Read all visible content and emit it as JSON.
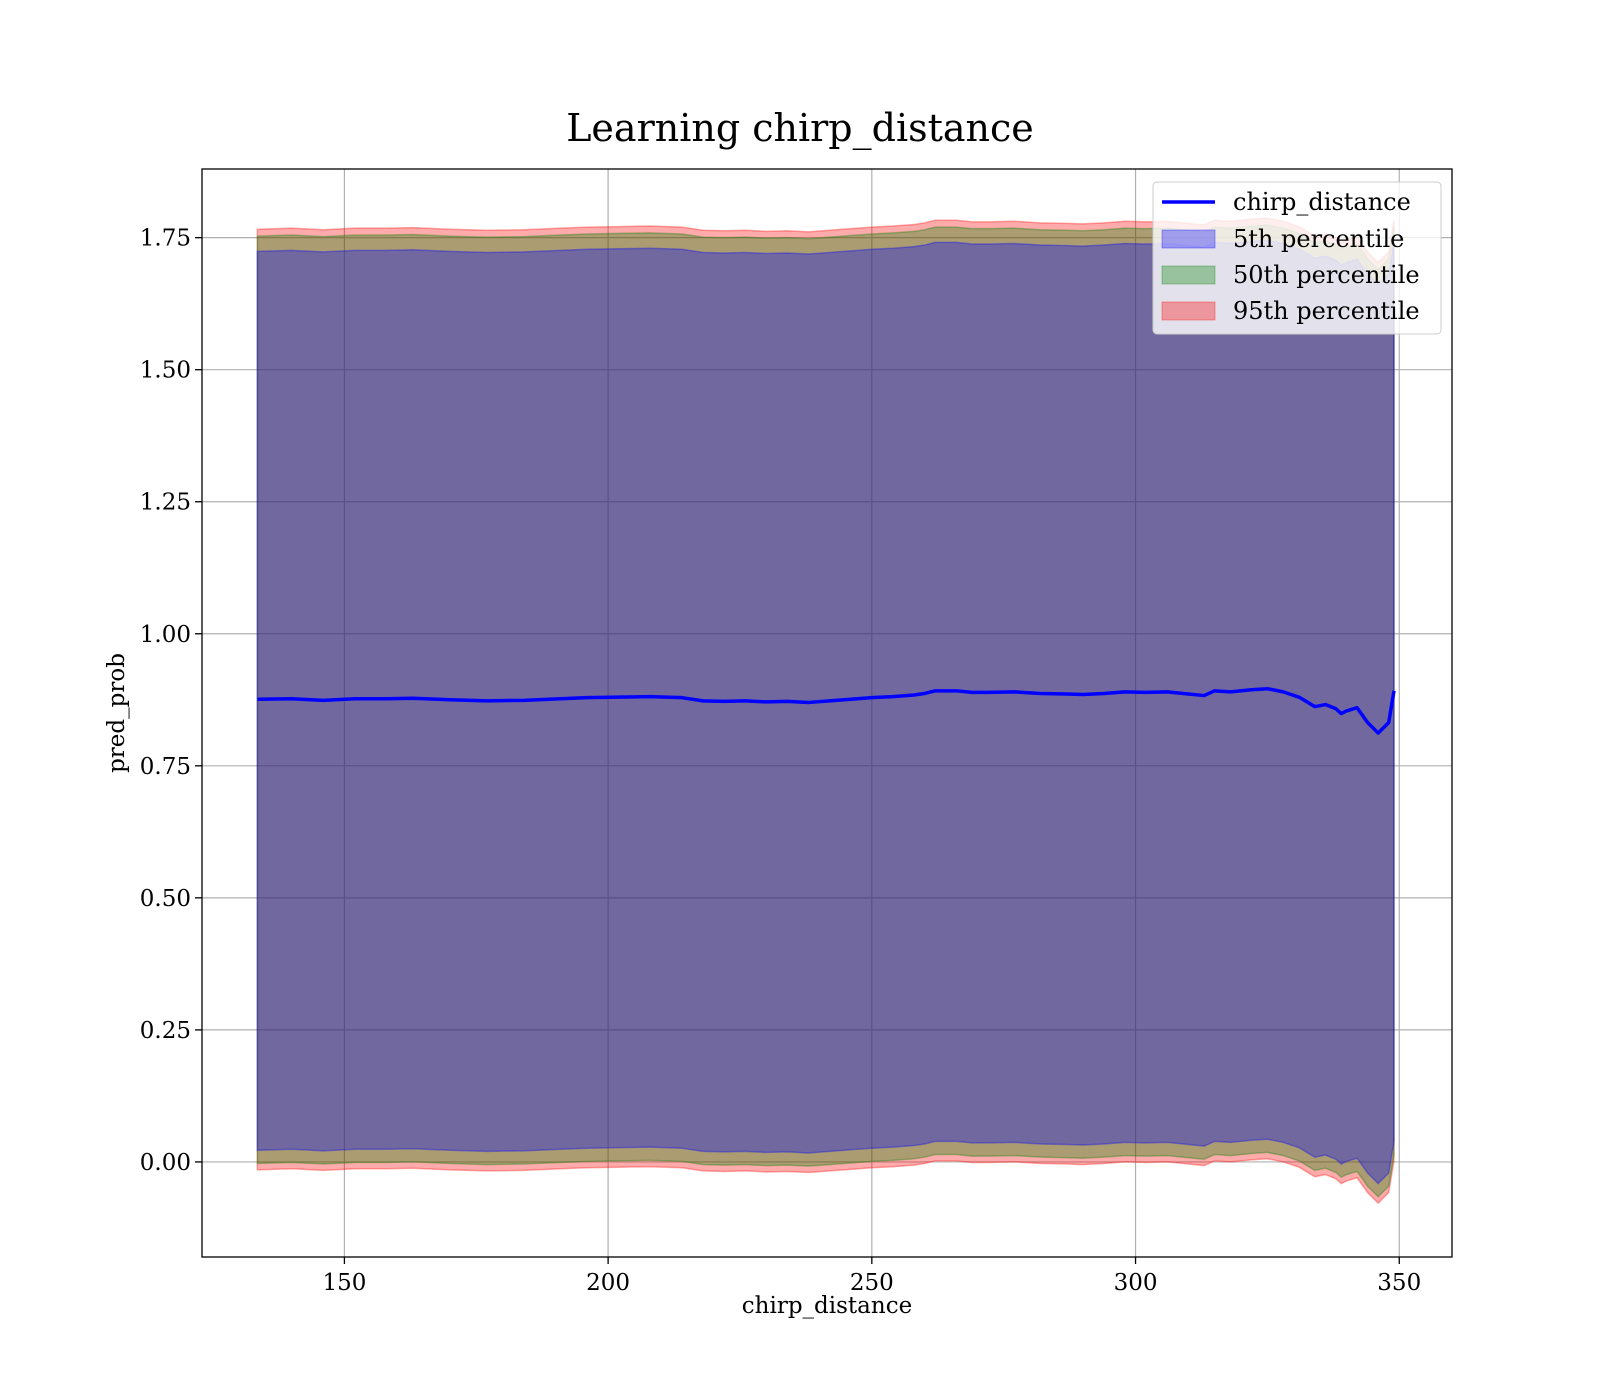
{
  "chart_data": {
    "type": "area",
    "title": "Learning chirp_distance",
    "xlabel": "chirp_distance",
    "ylabel": "pred_prob",
    "xlim": [
      123,
      360
    ],
    "ylim": [
      -0.18,
      1.88
    ],
    "xticks": [
      150,
      200,
      250,
      300,
      350
    ],
    "yticks": [
      0.0,
      0.25,
      0.5,
      0.75,
      1.0,
      1.25,
      1.5,
      1.75
    ],
    "ytick_labels": [
      "0.00",
      "0.25",
      "0.50",
      "0.75",
      "1.00",
      "1.25",
      "1.50",
      "1.75"
    ],
    "xtick_labels": [
      "150",
      "200",
      "250",
      "300",
      "350"
    ],
    "grid": true,
    "legend_position": "top-right",
    "colors": {
      "line": "#0000ff",
      "p5": "#0000ff",
      "p50": "#008000",
      "p95": "#ff0000"
    },
    "series": [
      {
        "name": "chirp_distance",
        "kind": "line",
        "x": [
          133.5,
          140,
          146,
          152,
          158,
          163,
          170,
          177,
          184,
          191,
          196,
          202,
          208,
          214,
          218,
          222,
          226,
          230,
          234,
          238,
          242,
          246,
          250,
          254,
          258,
          260,
          262,
          266,
          269,
          272,
          277,
          282,
          287,
          290,
          294,
          298,
          302,
          306,
          310,
          313,
          315,
          318,
          322,
          325,
          328,
          331,
          334,
          336,
          338,
          339,
          340,
          342,
          344,
          346,
          348,
          349
        ],
        "y": [
          0.876,
          0.877,
          0.874,
          0.877,
          0.877,
          0.878,
          0.875,
          0.873,
          0.874,
          0.877,
          0.879,
          0.88,
          0.881,
          0.879,
          0.873,
          0.872,
          0.873,
          0.871,
          0.872,
          0.87,
          0.873,
          0.876,
          0.879,
          0.881,
          0.884,
          0.887,
          0.892,
          0.892,
          0.889,
          0.889,
          0.89,
          0.887,
          0.886,
          0.885,
          0.887,
          0.89,
          0.889,
          0.89,
          0.886,
          0.883,
          0.892,
          0.89,
          0.894,
          0.896,
          0.89,
          0.88,
          0.862,
          0.866,
          0.858,
          0.849,
          0.854,
          0.86,
          0.832,
          0.812,
          0.832,
          0.892
        ]
      },
      {
        "name": "5th percentile",
        "kind": "band",
        "x": [
          133.5,
          140,
          146,
          152,
          158,
          163,
          170,
          177,
          184,
          191,
          196,
          202,
          208,
          214,
          218,
          222,
          226,
          230,
          234,
          238,
          242,
          246,
          250,
          254,
          258,
          260,
          262,
          266,
          269,
          272,
          277,
          282,
          287,
          290,
          294,
          298,
          302,
          306,
          310,
          313,
          315,
          318,
          322,
          325,
          328,
          331,
          334,
          336,
          338,
          339,
          340,
          342,
          344,
          346,
          348,
          349
        ],
        "lower": [
          0.022,
          0.024,
          0.021,
          0.024,
          0.024,
          0.025,
          0.022,
          0.02,
          0.021,
          0.024,
          0.026,
          0.027,
          0.028,
          0.026,
          0.02,
          0.019,
          0.02,
          0.018,
          0.019,
          0.017,
          0.02,
          0.023,
          0.026,
          0.028,
          0.031,
          0.034,
          0.039,
          0.039,
          0.036,
          0.036,
          0.037,
          0.034,
          0.033,
          0.032,
          0.034,
          0.037,
          0.036,
          0.037,
          0.033,
          0.03,
          0.039,
          0.037,
          0.041,
          0.043,
          0.037,
          0.027,
          0.009,
          0.013,
          0.005,
          -0.004,
          0.001,
          0.007,
          -0.021,
          -0.041,
          -0.021,
          0.039
        ],
        "upper": [
          1.724,
          1.726,
          1.723,
          1.726,
          1.726,
          1.727,
          1.724,
          1.722,
          1.723,
          1.726,
          1.728,
          1.729,
          1.73,
          1.728,
          1.722,
          1.721,
          1.722,
          1.72,
          1.721,
          1.719,
          1.722,
          1.725,
          1.728,
          1.73,
          1.733,
          1.736,
          1.741,
          1.741,
          1.738,
          1.738,
          1.739,
          1.736,
          1.735,
          1.734,
          1.736,
          1.739,
          1.738,
          1.739,
          1.735,
          1.732,
          1.741,
          1.739,
          1.743,
          1.745,
          1.739,
          1.729,
          1.711,
          1.715,
          1.707,
          1.698,
          1.703,
          1.709,
          1.681,
          1.661,
          1.681,
          1.741
        ]
      },
      {
        "name": "50th percentile",
        "kind": "band",
        "x": [
          133.5,
          140,
          146,
          152,
          158,
          163,
          170,
          177,
          184,
          191,
          196,
          202,
          208,
          214,
          218,
          222,
          226,
          230,
          234,
          238,
          242,
          246,
          250,
          254,
          258,
          260,
          262,
          266,
          269,
          272,
          277,
          282,
          287,
          290,
          294,
          298,
          302,
          306,
          310,
          313,
          315,
          318,
          322,
          325,
          328,
          331,
          334,
          336,
          338,
          339,
          340,
          342,
          344,
          346,
          348,
          349
        ],
        "lower": [
          -0.003,
          -0.001,
          -0.004,
          -0.001,
          -0.001,
          0.0,
          -0.003,
          -0.005,
          -0.004,
          -0.001,
          0.001,
          0.002,
          0.003,
          0.001,
          -0.005,
          -0.006,
          -0.005,
          -0.007,
          -0.006,
          -0.008,
          -0.005,
          -0.002,
          0.001,
          0.003,
          0.006,
          0.009,
          0.014,
          0.014,
          0.011,
          0.011,
          0.012,
          0.009,
          0.008,
          0.007,
          0.009,
          0.012,
          0.011,
          0.012,
          0.008,
          0.005,
          0.014,
          0.012,
          0.016,
          0.018,
          0.012,
          0.002,
          -0.016,
          -0.012,
          -0.02,
          -0.029,
          -0.024,
          -0.018,
          -0.046,
          -0.066,
          -0.046,
          0.014
        ],
        "upper": [
          1.753,
          1.755,
          1.752,
          1.755,
          1.755,
          1.756,
          1.753,
          1.751,
          1.752,
          1.755,
          1.757,
          1.758,
          1.759,
          1.757,
          1.751,
          1.75,
          1.751,
          1.749,
          1.75,
          1.748,
          1.751,
          1.754,
          1.757,
          1.759,
          1.762,
          1.765,
          1.77,
          1.77,
          1.767,
          1.767,
          1.768,
          1.765,
          1.764,
          1.763,
          1.765,
          1.768,
          1.767,
          1.768,
          1.764,
          1.761,
          1.77,
          1.768,
          1.772,
          1.774,
          1.768,
          1.758,
          1.74,
          1.744,
          1.736,
          1.727,
          1.732,
          1.738,
          1.71,
          1.69,
          1.71,
          1.77
        ]
      },
      {
        "name": "95th percentile",
        "kind": "band",
        "x": [
          133.5,
          140,
          146,
          152,
          158,
          163,
          170,
          177,
          184,
          191,
          196,
          202,
          208,
          214,
          218,
          222,
          226,
          230,
          234,
          238,
          242,
          246,
          250,
          254,
          258,
          260,
          262,
          266,
          269,
          272,
          277,
          282,
          287,
          290,
          294,
          298,
          302,
          306,
          310,
          313,
          315,
          318,
          322,
          325,
          328,
          331,
          334,
          336,
          338,
          339,
          340,
          342,
          344,
          346,
          348,
          349
        ],
        "lower": [
          -0.015,
          -0.013,
          -0.016,
          -0.013,
          -0.013,
          -0.012,
          -0.015,
          -0.017,
          -0.016,
          -0.013,
          -0.011,
          -0.01,
          -0.009,
          -0.011,
          -0.017,
          -0.018,
          -0.017,
          -0.019,
          -0.018,
          -0.02,
          -0.017,
          -0.014,
          -0.011,
          -0.009,
          -0.006,
          -0.003,
          0.002,
          0.002,
          -0.001,
          -0.001,
          0.0,
          -0.003,
          -0.004,
          -0.005,
          -0.003,
          0.0,
          -0.001,
          0.0,
          -0.004,
          -0.007,
          0.002,
          0.0,
          0.004,
          0.006,
          0.0,
          -0.01,
          -0.028,
          -0.024,
          -0.032,
          -0.041,
          -0.036,
          -0.03,
          -0.058,
          -0.078,
          -0.058,
          0.002
        ],
        "upper": [
          1.766,
          1.768,
          1.765,
          1.768,
          1.768,
          1.769,
          1.766,
          1.764,
          1.765,
          1.768,
          1.77,
          1.771,
          1.772,
          1.77,
          1.764,
          1.763,
          1.764,
          1.762,
          1.763,
          1.761,
          1.764,
          1.767,
          1.77,
          1.772,
          1.775,
          1.778,
          1.783,
          1.783,
          1.78,
          1.78,
          1.781,
          1.778,
          1.777,
          1.776,
          1.778,
          1.781,
          1.78,
          1.781,
          1.777,
          1.774,
          1.783,
          1.781,
          1.785,
          1.787,
          1.781,
          1.771,
          1.753,
          1.757,
          1.749,
          1.74,
          1.745,
          1.751,
          1.723,
          1.703,
          1.723,
          1.783
        ]
      }
    ]
  }
}
